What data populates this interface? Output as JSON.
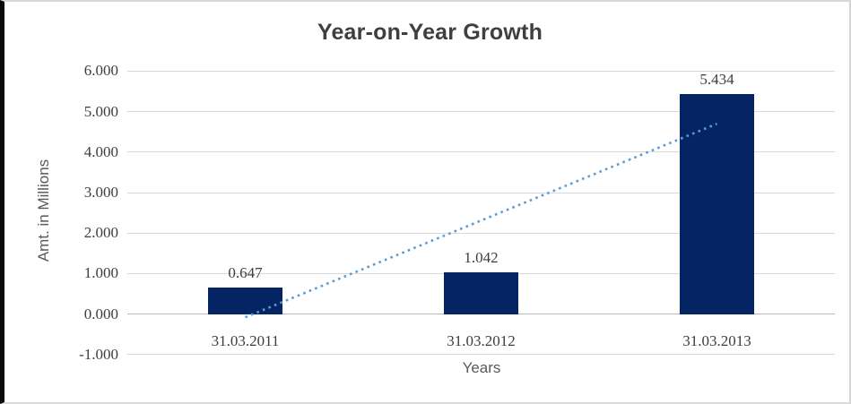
{
  "frame": {
    "background": "#ffffff",
    "left_edge_color": "#0a0a0a",
    "edge_color": "#d8d8d8"
  },
  "chart_data": {
    "type": "bar",
    "title": "Year-on-Year Growth",
    "categories": [
      "31.03.2011",
      "31.03.2012",
      "31.03.2013"
    ],
    "values": [
      0.647,
      1.042,
      5.434
    ],
    "data_labels": [
      "0.647",
      "1.042",
      "5.434"
    ],
    "xlabel": "Years",
    "ylabel": "Amt. in Millions",
    "ylim": [
      -1,
      6
    ],
    "ytick_step": 1,
    "ytick_labels_top_to_bottom": [
      "6.000",
      "5.000",
      "4.000",
      "3.000",
      "2.000",
      "1.000",
      "0.000",
      "-1.000"
    ],
    "grid": true,
    "legend": false,
    "colors": {
      "bar": "#052463",
      "trendline": "#5B9BD5",
      "gridline": "#d9d9d9",
      "zero_line": "#b9b9b9",
      "title_text": "#3f3f3f",
      "tick_text": "#3d3d3d",
      "axis_title_text": "#595959"
    },
    "trendline": {
      "style": "dotted",
      "color": "#5B9BD5",
      "start_category_index": 0,
      "start_value": -0.08,
      "end_category_index": 2,
      "end_value": 4.7
    }
  }
}
